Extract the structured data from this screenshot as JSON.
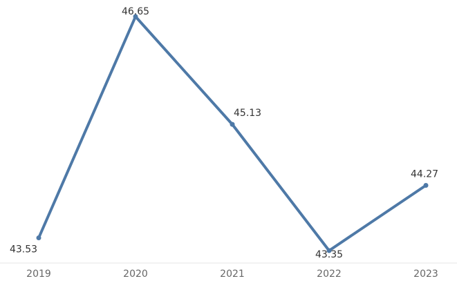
{
  "chart_data": {
    "type": "line",
    "title": "",
    "xlabel": "",
    "ylabel": "",
    "categories": [
      "2019",
      "2020",
      "2021",
      "2022",
      "2023"
    ],
    "series": [
      {
        "values": [
          43.53,
          46.65,
          45.13,
          43.35,
          44.27
        ],
        "labels": [
          "43.53",
          "46.65",
          "45.13",
          "43.35",
          "44.27"
        ],
        "color": "#4e79a7"
      }
    ],
    "ylim": [
      43.35,
      46.65
    ],
    "grid": false,
    "legend": "none",
    "axis_color": "#e6e6e6",
    "tick_color": "#666666",
    "label_color": "#333333"
  }
}
